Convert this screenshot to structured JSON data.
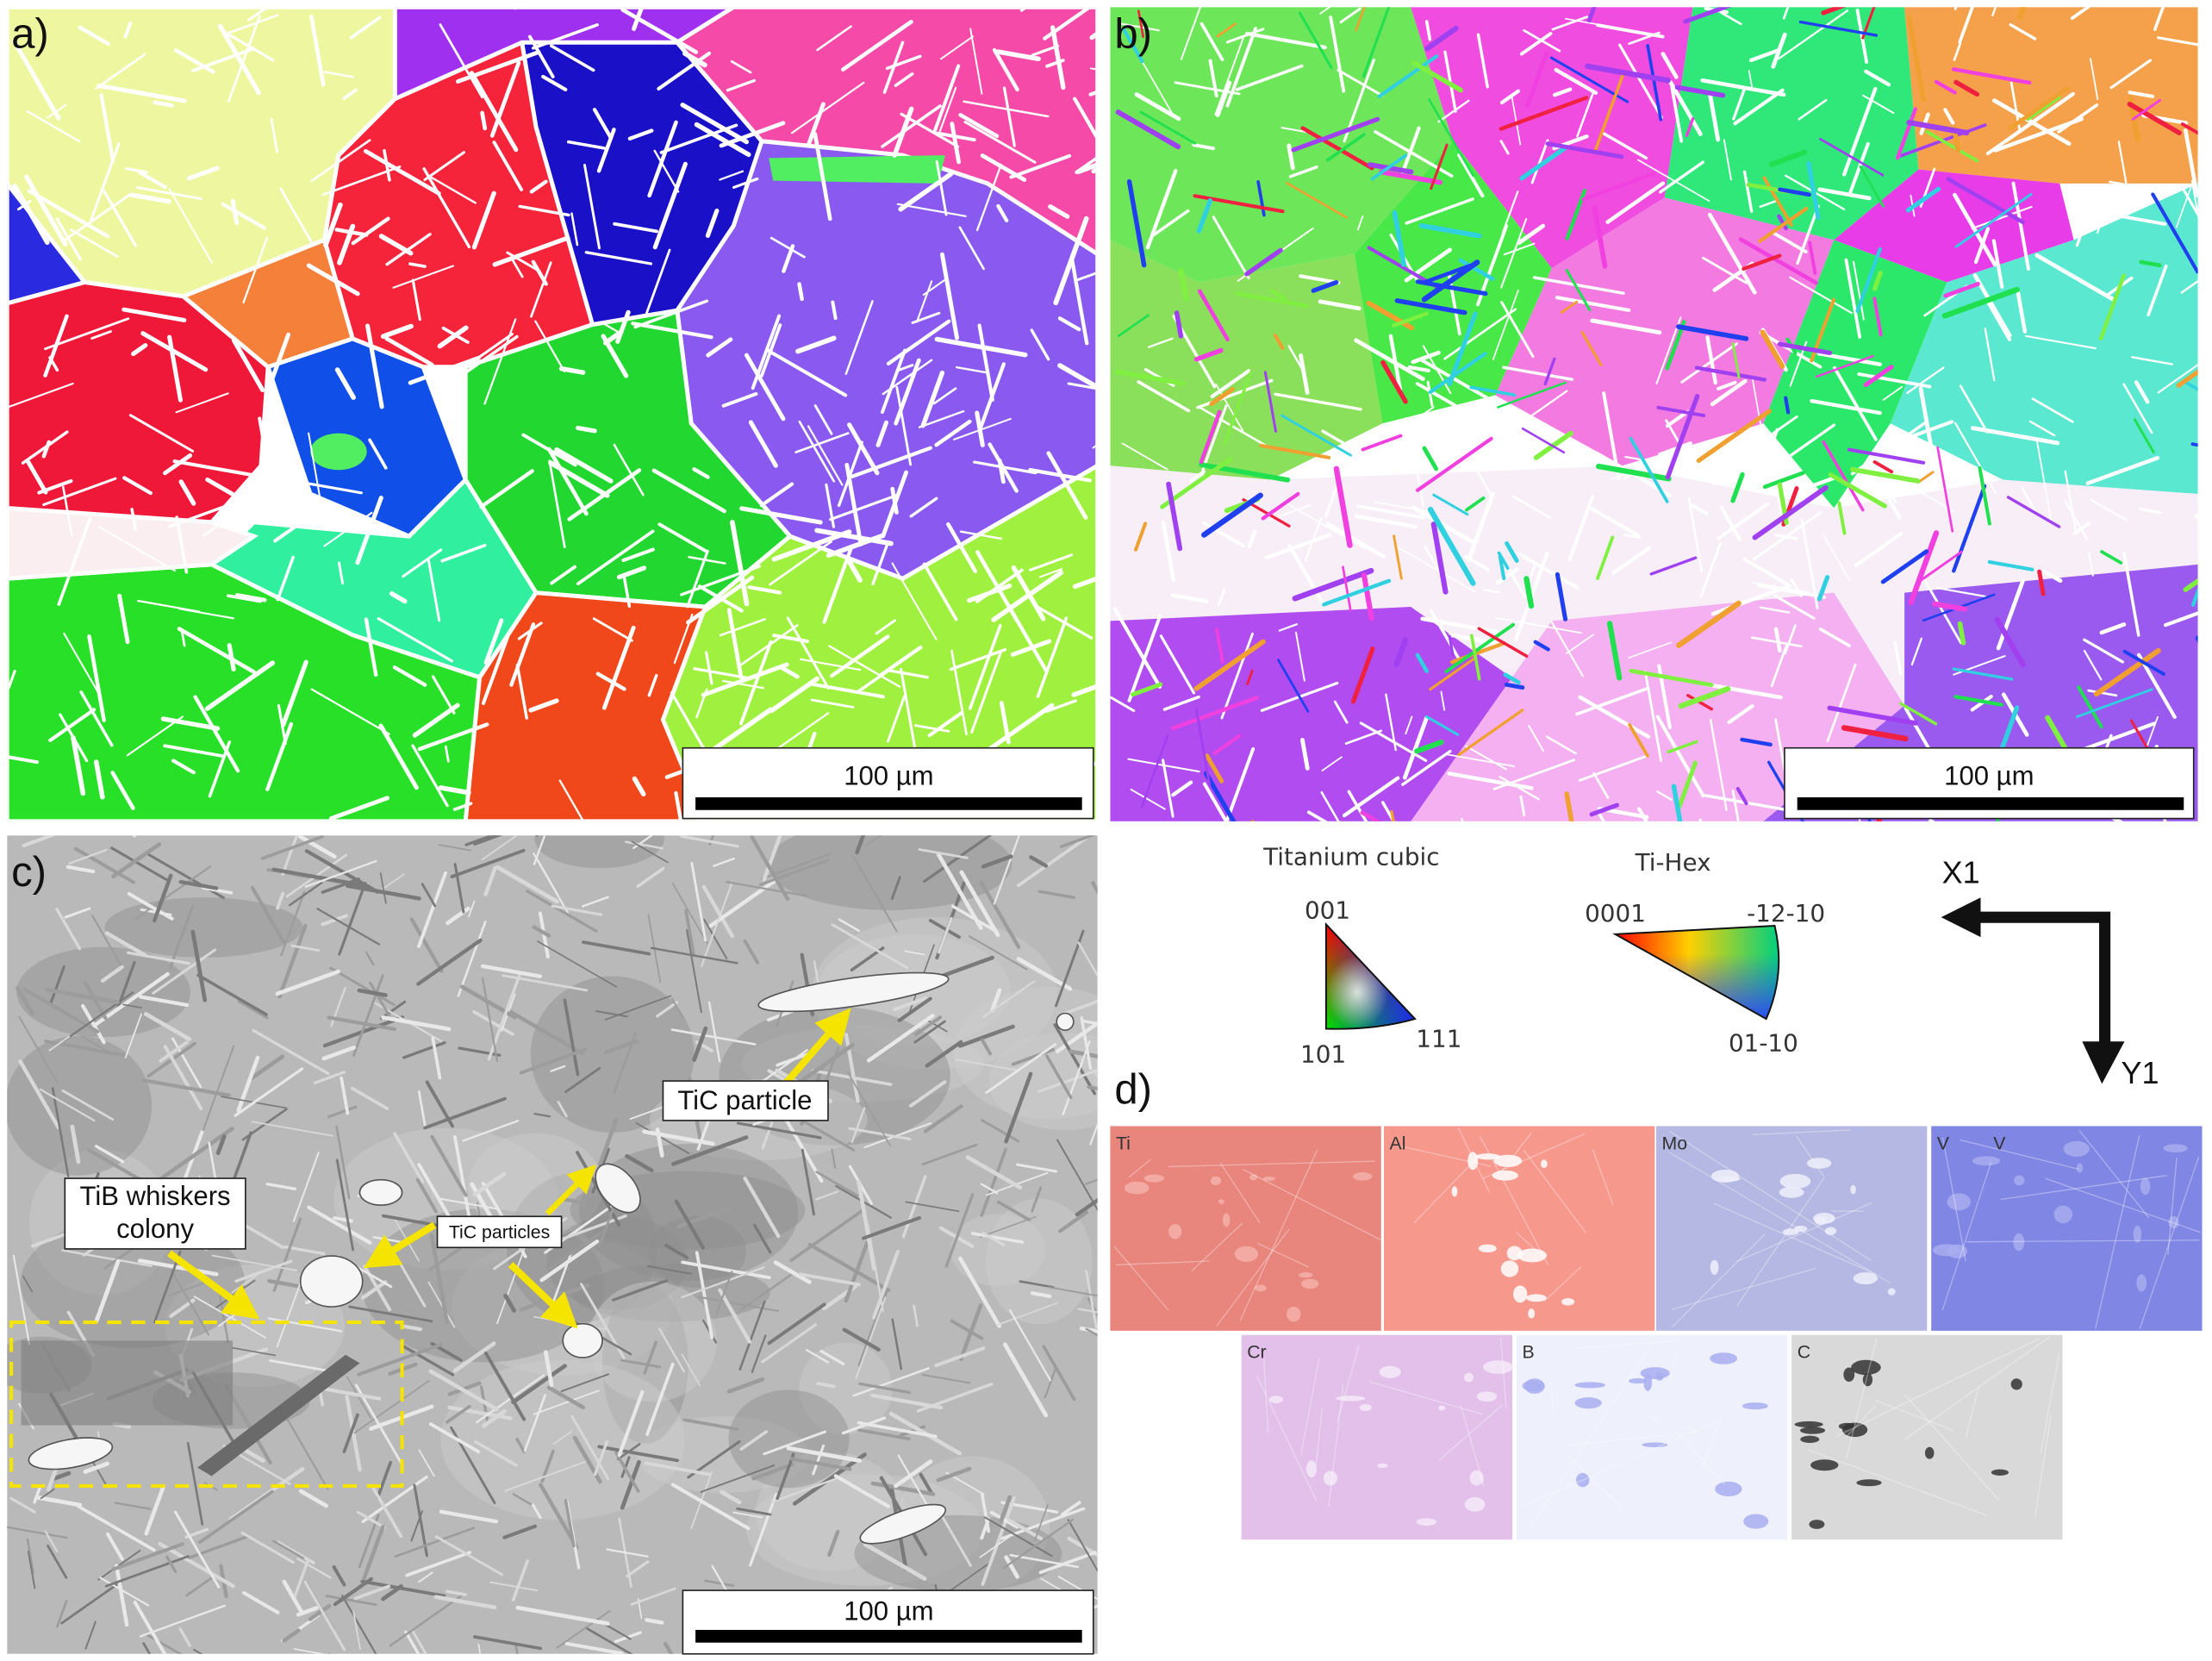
{
  "panels": [
    {
      "label": "a)",
      "scale_bar": "100 µm"
    },
    {
      "label": "b)",
      "scale_bar": "100 µm"
    },
    {
      "label": "c)",
      "scale_bar": "100 µm",
      "annotations": [
        "TiC particle",
        "TiC particles",
        [
          "TiB whiskers",
          "colony"
        ]
      ]
    }
  ],
  "legend": {
    "cubic": {
      "title": "Titanium cubic",
      "vertices": [
        "001",
        "101",
        "111"
      ]
    },
    "hex": {
      "title": "Ti-Hex",
      "vertices": [
        "0001",
        "-12-10",
        "01-10"
      ]
    },
    "axes": [
      "X1",
      "Y1"
    ]
  },
  "eds": {
    "label": "d)",
    "maps": [
      [
        "Ti"
      ],
      [
        "Al"
      ],
      [
        "Mo"
      ],
      [
        "V",
        "V"
      ],
      [
        "Cr"
      ],
      [
        "B"
      ],
      [
        "C"
      ]
    ]
  }
}
